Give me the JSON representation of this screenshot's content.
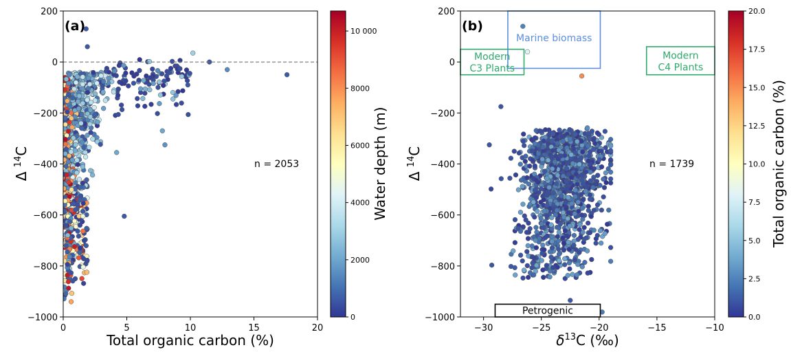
{
  "chart_data": [
    {
      "panel_label": "(a)",
      "type": "scatter",
      "xlabel": "Total organic carbon (%)",
      "ylabel": "Δ 14C",
      "xlim": [
        0,
        20
      ],
      "ylim": [
        -1000,
        200
      ],
      "xticks": [
        0,
        5,
        10,
        15,
        20
      ],
      "yticks": [
        -1000,
        -800,
        -600,
        -400,
        -200,
        0,
        200
      ],
      "reference_line": {
        "y": 0,
        "style": "dashed"
      },
      "annotation": "n = 2053",
      "colorbar": {
        "label": "Water depth (m)",
        "range": [
          0,
          10700
        ],
        "ticks": [
          0,
          2000,
          4000,
          6000,
          8000,
          10000
        ],
        "tick_labels": [
          "0",
          "2000",
          "4000",
          "6000",
          "8000",
          "10 000"
        ],
        "colormap": "RdYlBu_r"
      },
      "notable_points": [
        {
          "x": 17.6,
          "y": -50,
          "c": 600
        },
        {
          "x": 12.9,
          "y": -30,
          "c": 1500
        },
        {
          "x": 11.5,
          "y": 0,
          "c": 600
        },
        {
          "x": 10.2,
          "y": 35,
          "c": 3000
        },
        {
          "x": 9.8,
          "y": -90,
          "c": 600
        },
        {
          "x": 8.0,
          "y": -325,
          "c": 1600
        },
        {
          "x": 7.8,
          "y": -270,
          "c": 2000
        },
        {
          "x": 4.8,
          "y": -605,
          "c": 600
        },
        {
          "x": 4.2,
          "y": -355,
          "c": 2000
        },
        {
          "x": 1.9,
          "y": 60,
          "c": 600
        },
        {
          "x": 1.8,
          "y": 130,
          "c": 600
        }
      ]
    },
    {
      "panel_label": "(b)",
      "type": "scatter",
      "xlabel": "δ13C (‰)",
      "ylabel": "Δ 14C",
      "xlim": [
        -32,
        -10
      ],
      "ylim": [
        -1000,
        200
      ],
      "xticks": [
        -30,
        -25,
        -20,
        -15,
        -10
      ],
      "yticks": [
        -1000,
        -800,
        -600,
        -400,
        -200,
        0,
        200
      ],
      "annotation": "n = 1739",
      "regions": [
        {
          "label": [
            "Marine biomass"
          ],
          "x": [
            -27.9,
            -19.9
          ],
          "y": [
            -25,
            200
          ],
          "color": "#5b8ee0"
        },
        {
          "label": [
            "Modern",
            "C3 Plants"
          ],
          "x": [
            -32,
            -26.5
          ],
          "y": [
            -50,
            50
          ],
          "color": "#2eaa6a"
        },
        {
          "label": [
            "Modern",
            "C4 Plants"
          ],
          "x": [
            -15.9,
            -10
          ],
          "y": [
            -50,
            60
          ],
          "color": "#2eaa6a"
        },
        {
          "label": [
            "Petrogenic"
          ],
          "x": [
            -29,
            -19.9
          ],
          "y": [
            -1000,
            -950
          ],
          "color": "#000000"
        }
      ],
      "colorbar": {
        "label": "Total organic carbon (%)",
        "range": [
          0,
          20
        ],
        "ticks": [
          0,
          2.5,
          5,
          7.5,
          10,
          12.5,
          15,
          17.5,
          20
        ],
        "tick_labels": [
          "0.0",
          "2.5",
          "5.0",
          "7.5",
          "10.0",
          "12.5",
          "15.0",
          "17.5",
          "20.0"
        ],
        "colormap": "RdYlBu_r"
      },
      "notable_points": [
        {
          "x": -26.6,
          "y": 140,
          "c": 2.5
        },
        {
          "x": -26.2,
          "y": 40,
          "c": 8
        },
        {
          "x": -21.5,
          "y": -55,
          "c": 15
        },
        {
          "x": -22.5,
          "y": -935,
          "c": 1
        },
        {
          "x": -20.5,
          "y": -965,
          "c": 1
        },
        {
          "x": -28.5,
          "y": -175,
          "c": 1
        },
        {
          "x": -29.5,
          "y": -325,
          "c": 1
        }
      ]
    }
  ]
}
